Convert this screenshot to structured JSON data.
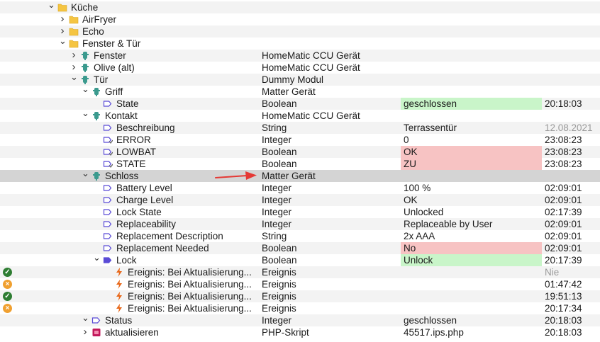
{
  "colors": {
    "folder": "#f5c542",
    "device": "#3b9a8e",
    "variable": "#5a4bd6",
    "event": "#e8681a",
    "script": "#c2185b",
    "value_green": "#c9f5c9",
    "value_red": "#f7c3c3",
    "selected_row": "#d4d4d4",
    "arrow": "#e53935"
  },
  "rows": [
    {
      "d": 5,
      "exp": "down",
      "icon": "folder",
      "name": "Küche"
    },
    {
      "d": 6,
      "exp": "right",
      "icon": "folder",
      "name": "AirFryer"
    },
    {
      "d": 6,
      "exp": "right",
      "icon": "folder",
      "name": "Echo"
    },
    {
      "d": 6,
      "exp": "down",
      "icon": "folder",
      "name": "Fenster & Tür"
    },
    {
      "d": 7,
      "exp": "right",
      "icon": "device",
      "name": "Fenster",
      "type": "HomeMatic CCU Gerät"
    },
    {
      "d": 7,
      "exp": "right",
      "icon": "device",
      "name": "Olive (alt)",
      "type": "HomeMatic CCU Gerät"
    },
    {
      "d": 7,
      "exp": "down",
      "icon": "device",
      "name": "Tür",
      "type": "Dummy Modul"
    },
    {
      "d": 8,
      "exp": "down",
      "icon": "device",
      "name": "Griff",
      "type": "Matter Gerät"
    },
    {
      "d": 9,
      "exp": "",
      "icon": "variable",
      "name": "State",
      "type": "Boolean",
      "value": "geschlossen",
      "vc": "green",
      "time": "20:18:03"
    },
    {
      "d": 8,
      "exp": "down",
      "icon": "device",
      "name": "Kontakt",
      "type": "HomeMatic CCU Gerät"
    },
    {
      "d": 9,
      "exp": "",
      "icon": "variable",
      "name": "Beschreibung",
      "type": "String",
      "value": "Terrassentür",
      "time": "12.08.2021",
      "tc": "grey"
    },
    {
      "d": 9,
      "exp": "",
      "icon": "variable-linked",
      "name": "ERROR",
      "type": "Integer",
      "value": "0",
      "time": "23:08:23"
    },
    {
      "d": 9,
      "exp": "",
      "icon": "variable-linked",
      "name": "LOWBAT",
      "type": "Boolean",
      "value": "OK",
      "vc": "red",
      "time": "23:08:23"
    },
    {
      "d": 9,
      "exp": "",
      "icon": "variable-linked",
      "name": "STATE",
      "type": "Boolean",
      "value": "ZU",
      "vc": "red",
      "time": "23:08:23"
    },
    {
      "d": 8,
      "exp": "down",
      "icon": "device",
      "name": "Schloss",
      "type": "Matter Gerät",
      "sel": true
    },
    {
      "d": 9,
      "exp": "",
      "icon": "variable",
      "name": "Battery Level",
      "type": "Integer",
      "value": "100 %",
      "time": "02:09:01"
    },
    {
      "d": 9,
      "exp": "",
      "icon": "variable",
      "name": "Charge Level",
      "type": "Integer",
      "value": "OK",
      "time": "02:09:01"
    },
    {
      "d": 9,
      "exp": "",
      "icon": "variable",
      "name": "Lock State",
      "type": "Integer",
      "value": "Unlocked",
      "time": "02:17:39"
    },
    {
      "d": 9,
      "exp": "",
      "icon": "variable",
      "name": "Replaceability",
      "type": "Integer",
      "value": "Replaceable by User",
      "time": "02:09:01"
    },
    {
      "d": 9,
      "exp": "",
      "icon": "variable",
      "name": "Replacement Description",
      "type": "String",
      "value": "2x AAA",
      "time": "02:09:01"
    },
    {
      "d": 9,
      "exp": "",
      "icon": "variable",
      "name": "Replacement Needed",
      "type": "Boolean",
      "value": "No",
      "vc": "red",
      "time": "02:09:01"
    },
    {
      "d": 9,
      "exp": "down",
      "icon": "variable-filled",
      "name": "Lock",
      "type": "Boolean",
      "value": "Unlock",
      "vc": "green",
      "time": "20:17:39"
    },
    {
      "d": 10,
      "exp": "",
      "icon": "event",
      "name": "Ereignis: Bei Aktualisierung...",
      "type": "Ereignis",
      "time": "Nie",
      "tc": "grey",
      "status": "ok"
    },
    {
      "d": 10,
      "exp": "",
      "icon": "event",
      "name": "Ereignis: Bei Aktualisierung...",
      "type": "Ereignis",
      "time": "01:47:42",
      "status": "warn"
    },
    {
      "d": 10,
      "exp": "",
      "icon": "event",
      "name": "Ereignis: Bei Aktualisierung...",
      "type": "Ereignis",
      "time": "19:51:13",
      "status": "ok"
    },
    {
      "d": 10,
      "exp": "",
      "icon": "event",
      "name": "Ereignis: Bei Aktualisierung...",
      "type": "Ereignis",
      "time": "20:17:34",
      "status": "warn"
    },
    {
      "d": 8,
      "exp": "down",
      "icon": "variable",
      "name": "Status",
      "type": "Integer",
      "value": "geschlossen",
      "time": "20:18:03"
    },
    {
      "d": 8,
      "exp": "right",
      "icon": "script",
      "name": "aktualisieren",
      "type": "PHP-Skript",
      "value": "45517.ips.php",
      "time": "20:18:03"
    }
  ]
}
